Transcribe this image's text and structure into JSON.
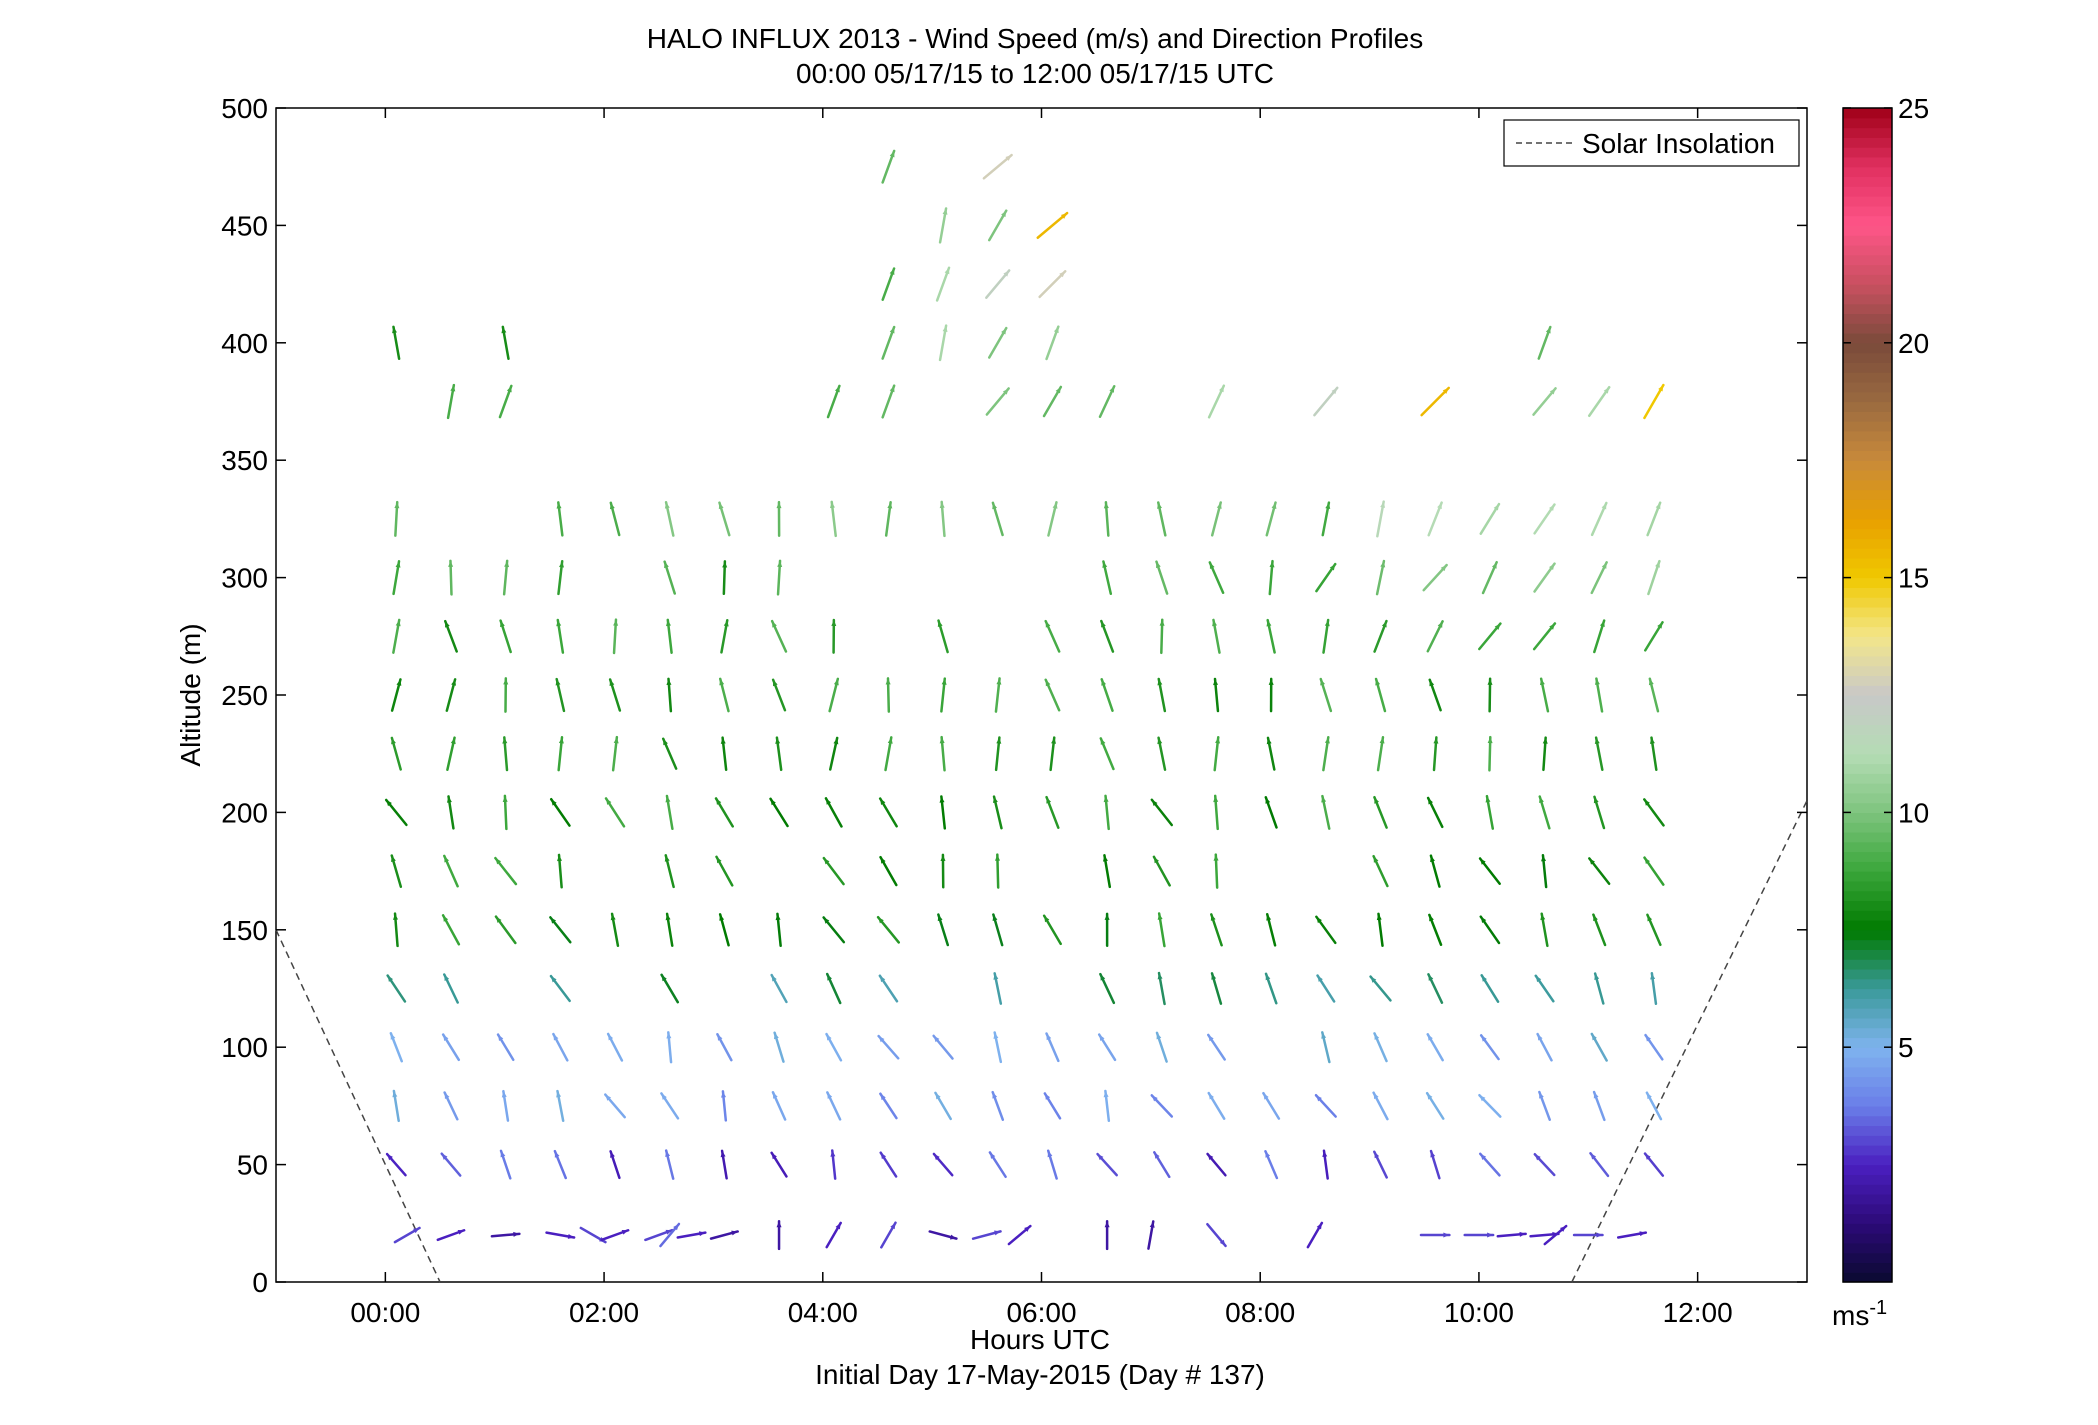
{
  "chart_data": {
    "type": "scatter",
    "title": "HALO INFLUX 2013 - Wind Speed (m/s) and Direction Profiles",
    "subtitle": "00:00 05/17/15 to 12:00 05/17/15  UTC",
    "xlabel": "Hours UTC",
    "xlabel2": "Initial Day 17-May-2015 (Day # 137)",
    "ylabel": "Altitude (m)",
    "xlim": [
      -1.0,
      13.0
    ],
    "ylim": [
      0,
      500
    ],
    "x_ticks": [
      0,
      2,
      4,
      6,
      8,
      10,
      12
    ],
    "x_tick_labels": [
      "00:00",
      "02:00",
      "04:00",
      "06:00",
      "08:00",
      "10:00",
      "12:00"
    ],
    "y_ticks": [
      0,
      50,
      100,
      150,
      200,
      250,
      300,
      350,
      400,
      450,
      500
    ],
    "y_tick_labels": [
      "0",
      "50",
      "100",
      "150",
      "200",
      "250",
      "300",
      "350",
      "400",
      "450",
      "500"
    ],
    "colorbar": {
      "range": [
        0,
        25
      ],
      "ticks": [
        5,
        10,
        15,
        20,
        25
      ],
      "tick_labels": [
        "5",
        "10",
        "15",
        "20",
        "25"
      ],
      "unit_label": "ms",
      "unit_superscript": "-1"
    },
    "legend": {
      "position": "top-right",
      "entries": [
        "Solar Insolation"
      ]
    },
    "solar_insolation": [
      {
        "x": [
          -1.0,
          0.5
        ],
        "y": [
          150,
          0
        ]
      },
      {
        "x": [
          10.85,
          13.0
        ],
        "y": [
          0,
          205
        ]
      }
    ],
    "columns": {
      "times": [
        0.1,
        0.6,
        1.1,
        1.6,
        2.1,
        2.6,
        3.1,
        3.6,
        4.1,
        4.6,
        5.1,
        5.6,
        6.1,
        6.6,
        7.1,
        7.6,
        8.1,
        8.6,
        9.1,
        9.6,
        10.1,
        10.6,
        11.1,
        11.6
      ],
      "altitudes": [
        50,
        75,
        100,
        125,
        150,
        175,
        200,
        225,
        250,
        275,
        300,
        325,
        350,
        375,
        400,
        425,
        450,
        475
      ]
    },
    "sparse_vectors": [
      [
        0.1,
        400,
        8.0,
        350
      ],
      [
        1.1,
        400,
        8.0,
        350
      ],
      [
        4.6,
        400,
        9.5,
        20
      ],
      [
        5.1,
        400,
        11.0,
        10
      ],
      [
        5.6,
        400,
        10.0,
        30
      ],
      [
        6.1,
        400,
        10.5,
        20
      ],
      [
        10.6,
        400,
        9.5,
        20
      ],
      [
        0.6,
        375,
        9.0,
        10
      ],
      [
        1.1,
        375,
        9.0,
        20
      ],
      [
        4.1,
        375,
        9.0,
        20
      ],
      [
        4.6,
        375,
        9.5,
        20
      ],
      [
        5.6,
        375,
        10.0,
        40
      ],
      [
        6.1,
        375,
        9.5,
        30
      ],
      [
        6.6,
        375,
        9.5,
        25
      ],
      [
        7.6,
        375,
        11.0,
        25
      ],
      [
        8.6,
        375,
        12.0,
        40
      ],
      [
        9.6,
        375,
        15.5,
        45
      ],
      [
        10.6,
        375,
        10.5,
        40
      ],
      [
        11.1,
        375,
        11.0,
        35
      ],
      [
        11.6,
        375,
        15.0,
        30
      ],
      [
        4.6,
        425,
        9.0,
        20
      ],
      [
        5.1,
        425,
        11.0,
        20
      ],
      [
        5.6,
        425,
        12.0,
        40
      ],
      [
        6.1,
        425,
        12.8,
        45
      ],
      [
        5.1,
        450,
        10.5,
        10
      ],
      [
        5.6,
        450,
        10.0,
        30
      ],
      [
        6.1,
        450,
        15.5,
        50
      ],
      [
        4.6,
        475,
        9.5,
        20
      ],
      [
        5.6,
        475,
        12.8,
        50
      ],
      [
        0.2,
        20,
        3.0,
        60
      ],
      [
        0.6,
        20,
        2.5,
        70
      ],
      [
        1.1,
        20,
        2.0,
        85
      ],
      [
        1.6,
        20,
        2.5,
        100
      ],
      [
        1.9,
        20,
        3.0,
        120
      ],
      [
        2.1,
        20,
        2.5,
        70
      ],
      [
        2.5,
        20,
        3.0,
        70
      ],
      [
        2.6,
        20,
        3.5,
        40
      ],
      [
        2.8,
        20,
        2.5,
        80
      ],
      [
        3.1,
        20,
        2.0,
        75
      ],
      [
        3.6,
        20,
        2.0,
        0
      ],
      [
        4.1,
        20,
        2.5,
        30
      ],
      [
        4.6,
        20,
        3.0,
        30
      ],
      [
        5.1,
        20,
        2.0,
        105
      ],
      [
        5.5,
        20,
        3.0,
        75
      ],
      [
        5.8,
        20,
        2.5,
        50
      ],
      [
        6.6,
        20,
        2.0,
        0
      ],
      [
        7.0,
        20,
        2.0,
        10
      ],
      [
        7.6,
        20,
        3.0,
        140
      ],
      [
        8.5,
        20,
        2.5,
        30
      ],
      [
        9.6,
        20,
        3.0,
        90
      ],
      [
        10.0,
        20,
        3.0,
        90
      ],
      [
        10.3,
        20,
        2.5,
        85
      ],
      [
        10.6,
        20,
        2.5,
        85
      ],
      [
        10.7,
        20,
        2.5,
        50
      ],
      [
        11.0,
        20,
        3.0,
        90
      ],
      [
        11.4,
        20,
        2.5,
        80
      ]
    ]
  },
  "colors": {
    "colormap": [
      "#0a0a30",
      "#2c0a78",
      "#4a1fc0",
      "#6a7ee8",
      "#7fb3ee",
      "#3a9a9a",
      "#007a00",
      "#3aa63a",
      "#7ec47e",
      "#b4dcb4",
      "#c8c8c8",
      "#f3e68a",
      "#f0c800",
      "#e8a000",
      "#c88a3a",
      "#9a6a40",
      "#7a4a3a",
      "#c85060",
      "#ff5588",
      "#e03060",
      "#a00018"
    ],
    "solar_line": "#444444",
    "axis": "#000000"
  },
  "legend_label": "Solar Insolation"
}
